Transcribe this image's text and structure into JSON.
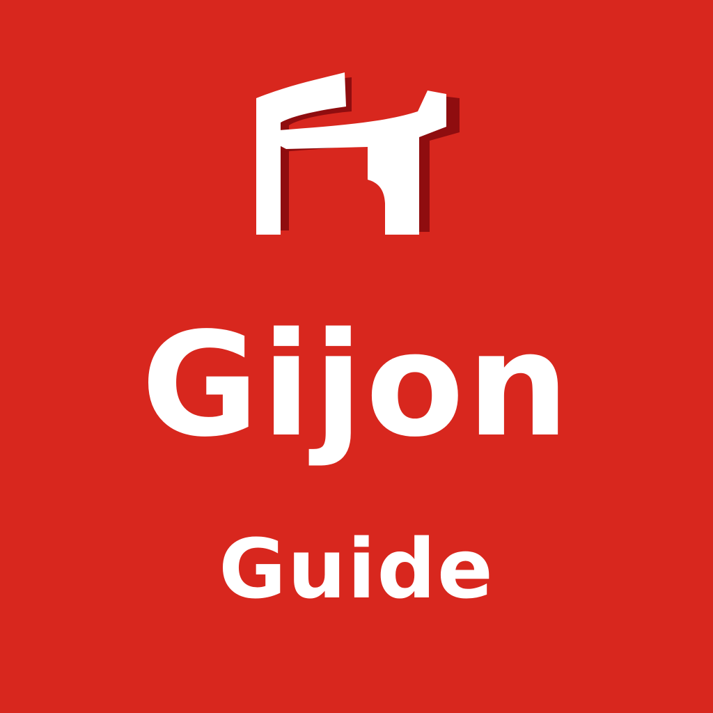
{
  "app": {
    "title": "Gijon",
    "subtitle": "Guide",
    "logo_icon": "arch-logo-icon"
  },
  "colors": {
    "background": "#d8271e",
    "text": "#ffffff",
    "logo_face": "#ffffff",
    "logo_shadow": "#8f0d0f"
  }
}
